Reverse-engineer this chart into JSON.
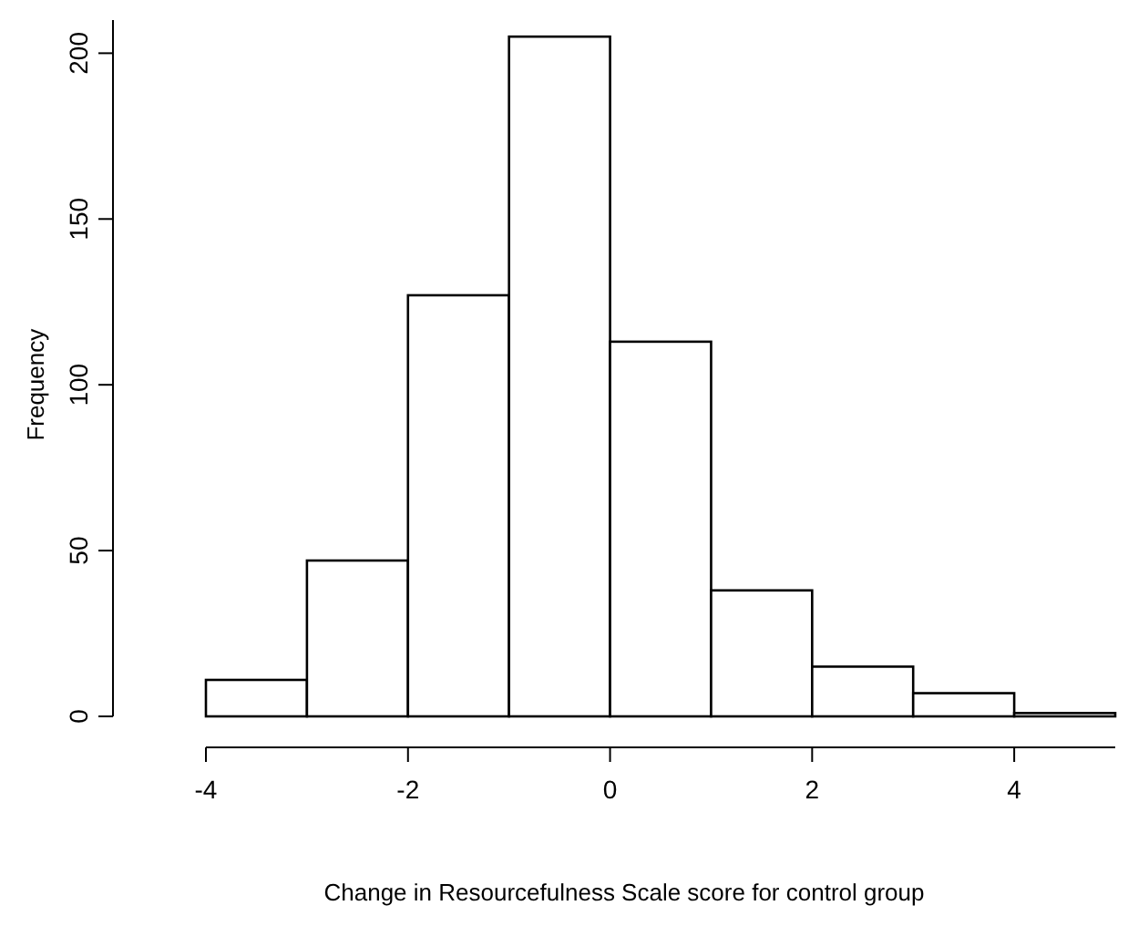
{
  "chart_data": {
    "type": "histogram",
    "xlabel": "Change in Resourcefulness Scale score for control group",
    "ylabel": "Frequency",
    "bins": [
      -4,
      -3,
      -2,
      -1,
      0,
      1,
      2,
      3,
      4,
      5
    ],
    "values": [
      11,
      47,
      127,
      205,
      113,
      38,
      15,
      7,
      1
    ],
    "color": "#ffffff",
    "xlim": [
      -4,
      5
    ],
    "xticks": [
      -4,
      -2,
      0,
      2,
      4
    ],
    "ylim": [
      0,
      210
    ],
    "yticks": [
      0,
      50,
      100,
      150,
      200
    ],
    "grid": false
  }
}
